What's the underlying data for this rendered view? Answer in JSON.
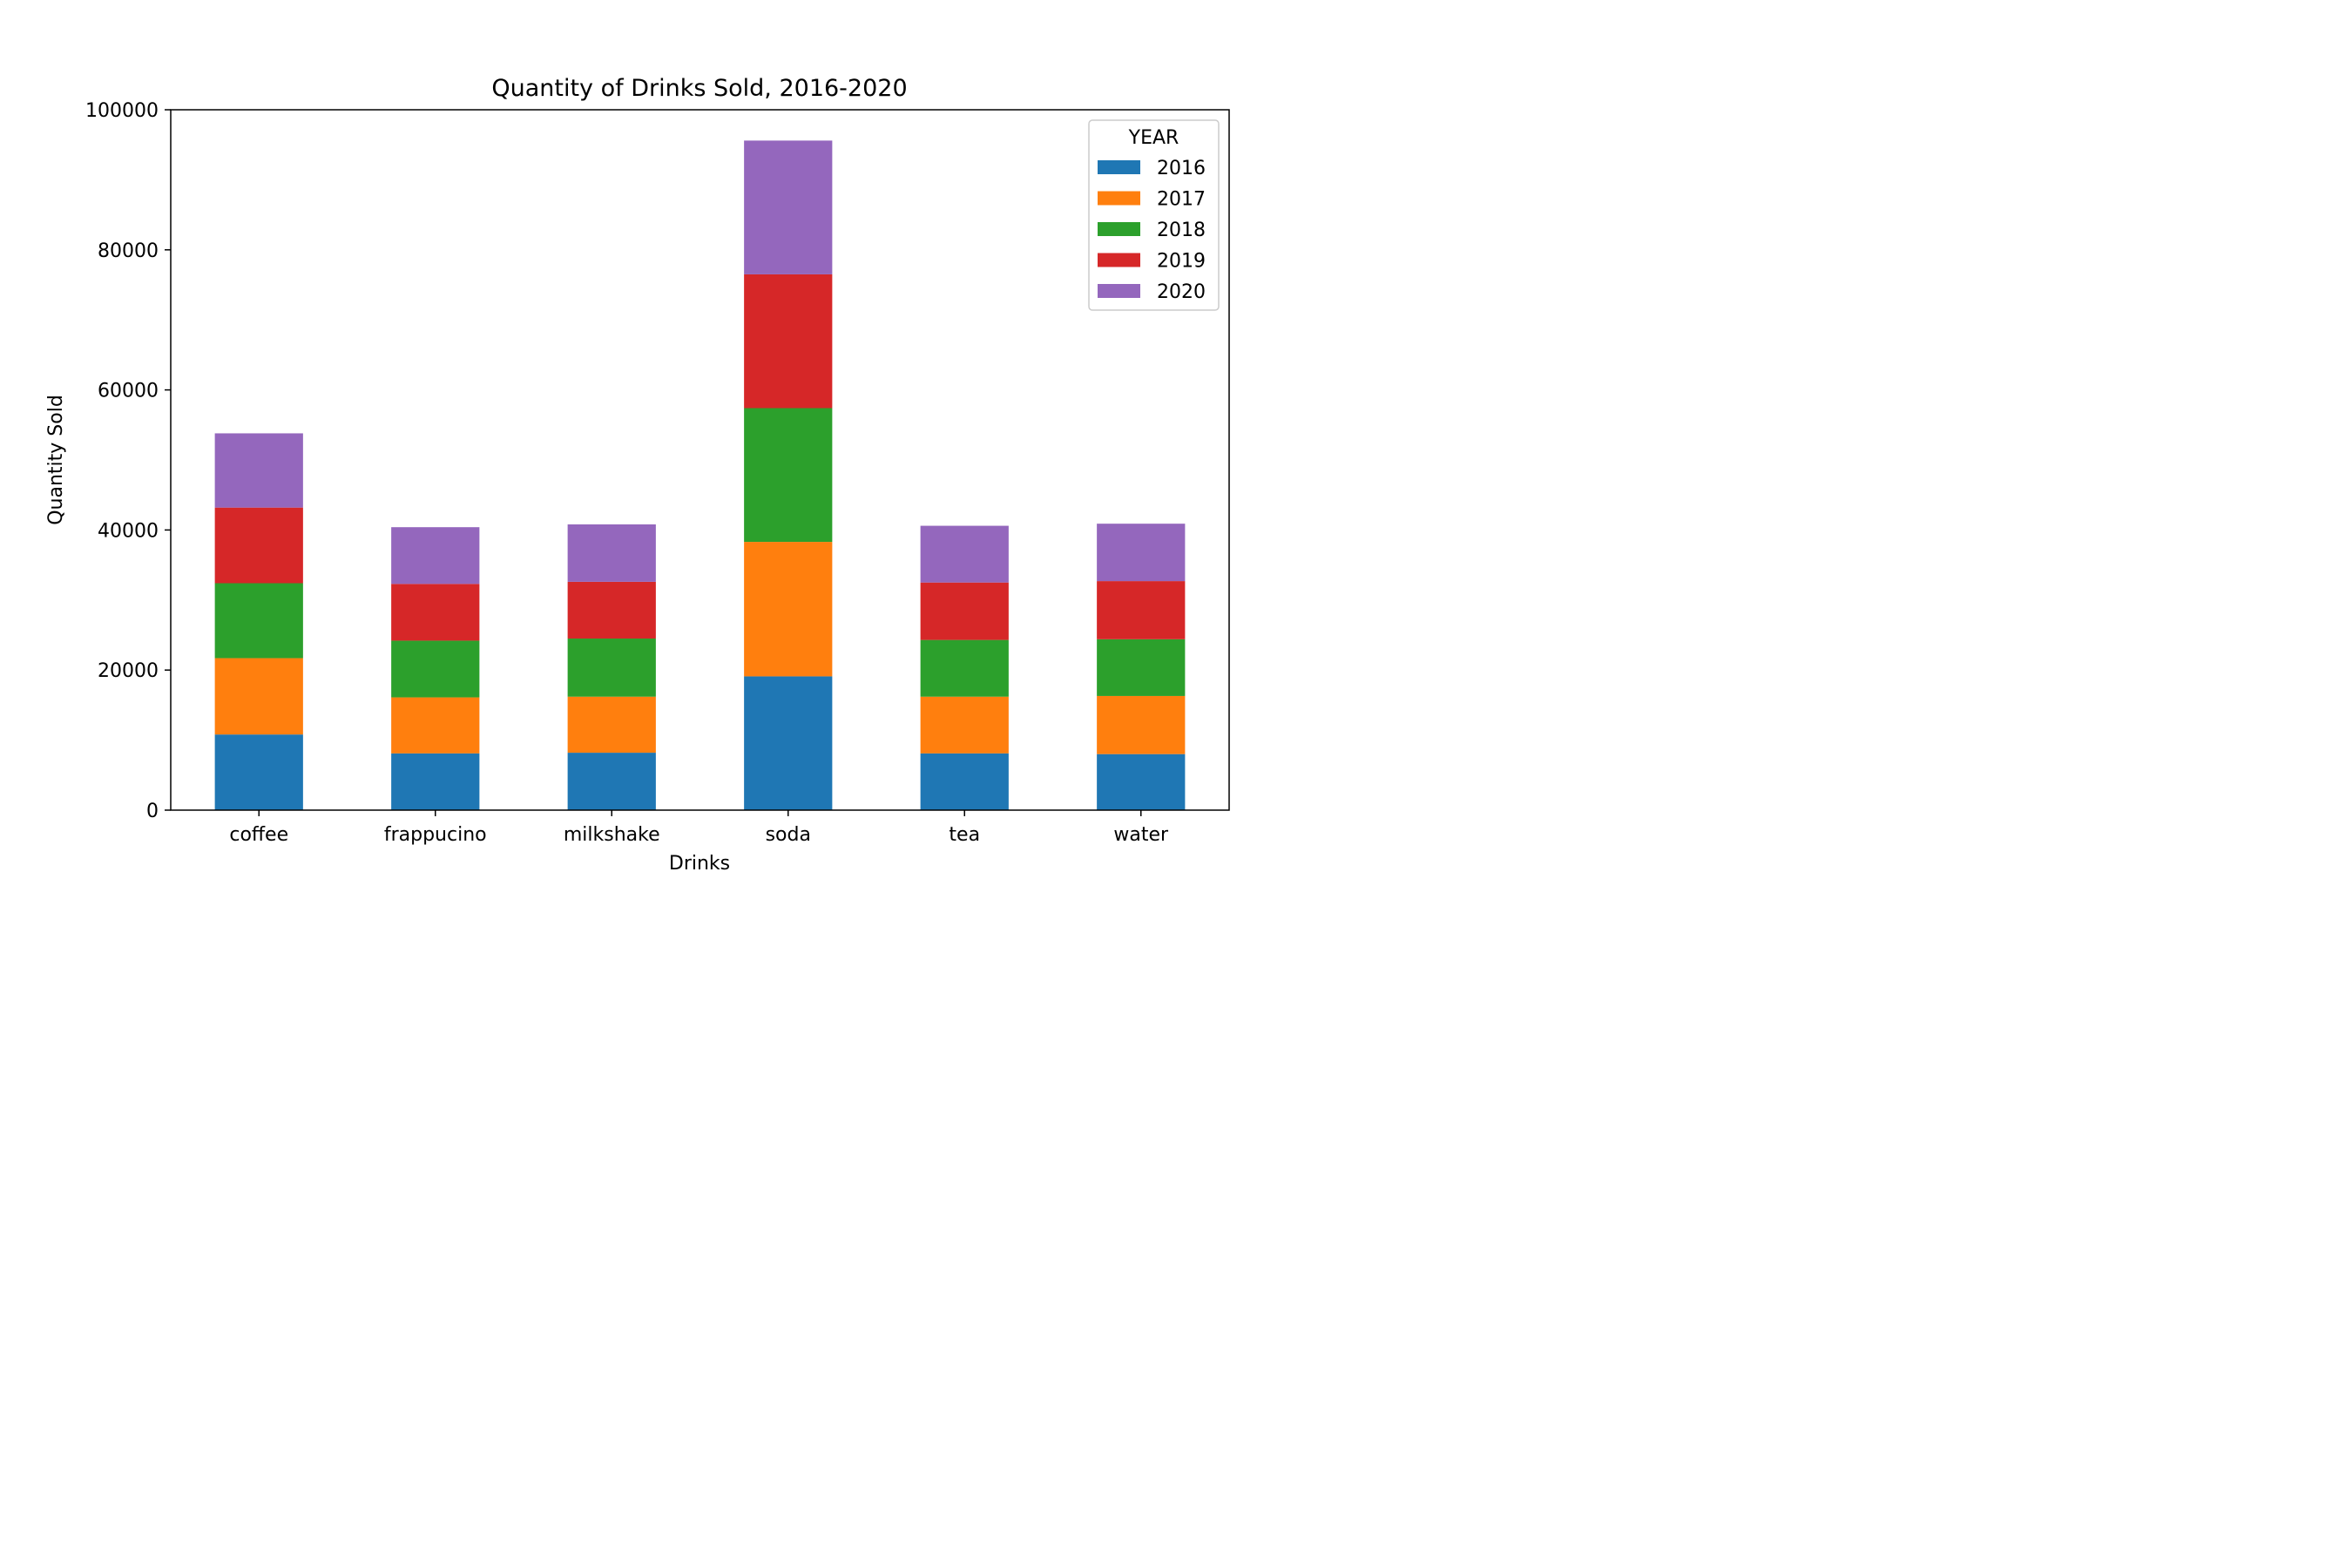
{
  "chart_data": {
    "type": "bar",
    "stacked": true,
    "title": "Quantity of Drinks Sold, 2016-2020",
    "xlabel": "Drinks",
    "ylabel": "Quantity Sold",
    "ylim": [
      0,
      100000
    ],
    "yticks": [
      "0",
      "20000",
      "40000",
      "60000",
      "80000",
      "100000"
    ],
    "categories": [
      "coffee",
      "frappucino",
      "milkshake",
      "soda",
      "tea",
      "water"
    ],
    "legend": {
      "title": "YEAR",
      "placement": "top-right"
    },
    "grid": false,
    "series": [
      {
        "name": "2016",
        "color": "#1f77b4",
        "values": [
          10800,
          8100,
          8200,
          19100,
          8100,
          8000
        ]
      },
      {
        "name": "2017",
        "color": "#ff7f0e",
        "values": [
          10900,
          8000,
          8000,
          19200,
          8100,
          8300
        ]
      },
      {
        "name": "2018",
        "color": "#2ca02c",
        "values": [
          10700,
          8100,
          8300,
          19100,
          8100,
          8100
        ]
      },
      {
        "name": "2019",
        "color": "#d62728",
        "values": [
          10800,
          8100,
          8100,
          19100,
          8200,
          8300
        ]
      },
      {
        "name": "2020",
        "color": "#9467bd",
        "values": [
          10600,
          8100,
          8200,
          19100,
          8100,
          8200
        ]
      }
    ]
  }
}
